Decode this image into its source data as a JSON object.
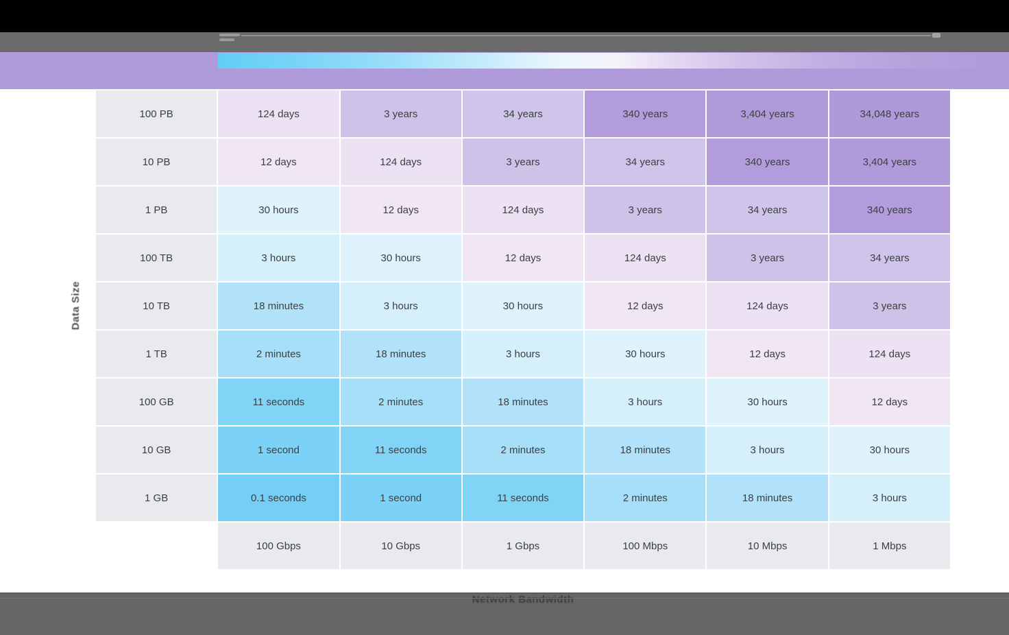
{
  "chrome": {
    "top_bar_color": "#000000",
    "toolbar_color": "#6b6b6b",
    "footer_color": "#666666"
  },
  "legend": {
    "band_color": "#af9ada",
    "gradient_colors": [
      "#62cef6",
      "#9bdef9",
      "#e9f7fd",
      "#f5f4fa",
      "#d2c2ea",
      "#b7a2dd",
      "#af9ada"
    ]
  },
  "chart_data": {
    "type": "heatmap",
    "title": "",
    "xlabel": "Network Bandwidth",
    "ylabel": "Data Size",
    "row_labels": [
      "100 PB",
      "10 PB",
      "1 PB",
      "100 TB",
      "10 TB",
      "1 TB",
      "100 GB",
      "10 GB",
      "1 GB"
    ],
    "col_labels": [
      "100 Gbps",
      "10 Gbps",
      "1 Gbps",
      "100 Mbps",
      "10 Mbps",
      "1 Mbps"
    ],
    "values": [
      [
        "124 days",
        "3 years",
        "34 years",
        "340 years",
        "3,404 years",
        "34,048 years"
      ],
      [
        "12 days",
        "124 days",
        "3 years",
        "34 years",
        "340 years",
        "3,404 years"
      ],
      [
        "30 hours",
        "12 days",
        "124 days",
        "3 years",
        "34 years",
        "340 years"
      ],
      [
        "3 hours",
        "30 hours",
        "12 days",
        "124 days",
        "3 years",
        "34 years"
      ],
      [
        "18 minutes",
        "3 hours",
        "30 hours",
        "12 days",
        "124 days",
        "3 years"
      ],
      [
        "2 minutes",
        "18 minutes",
        "3 hours",
        "30 hours",
        "12 days",
        "124 days"
      ],
      [
        "11 seconds",
        "2 minutes",
        "18 minutes",
        "3 hours",
        "30 hours",
        "12 days"
      ],
      [
        "1 second",
        "11 seconds",
        "2 minutes",
        "18 minutes",
        "3 hours",
        "30 hours"
      ],
      [
        "0.1 seconds",
        "1 second",
        "11 seconds",
        "2 minutes",
        "18 minutes",
        "3 hours"
      ]
    ],
    "cell_colors": {
      "0.1 seconds": "#74cef5",
      "1 second": "#7bd1f6",
      "11 seconds": "#82d4f7",
      "2 minutes": "#a8dff8",
      "18 minutes": "#b2e2f9",
      "3 hours": "#d5effb",
      "30 hours": "#dff3fc",
      "12 days": "#f1e7f4",
      "124 days": "#ede2f3",
      "3 years": "#cec2e8",
      "34 years": "#cfc4e9",
      "340 years": "#b29cdb",
      "3,404 years": "#b09bda",
      "34,048 years": "#af9ad9"
    },
    "label_cell_color": "#e8eaed",
    "text_color": "#3c4043",
    "legend_position": "top",
    "grid": false
  }
}
